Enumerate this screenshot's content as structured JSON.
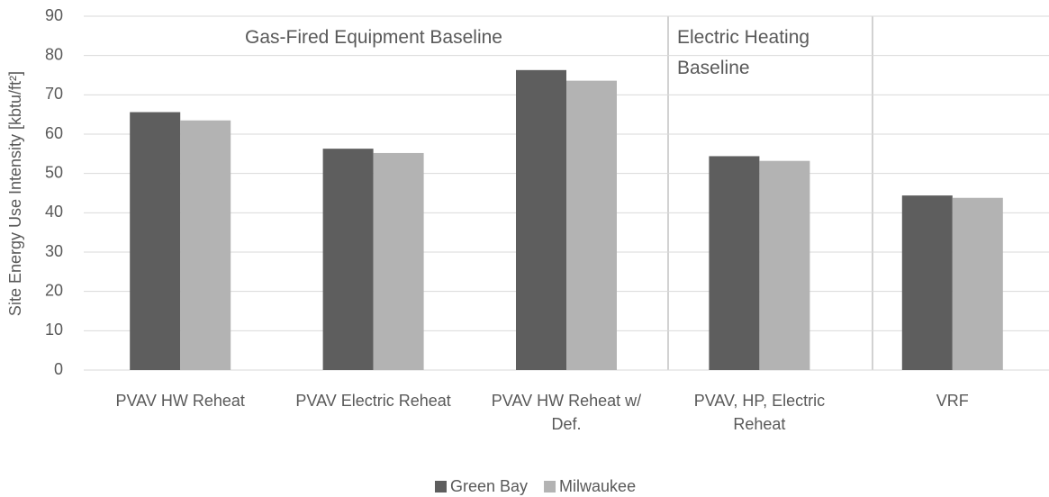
{
  "chart_data": {
    "type": "bar",
    "y_label": "Site Energy Use Intensity [kbtu/ft²]",
    "categories": [
      "PVAV HW Reheat",
      "PVAV Electric Reheat",
      "PVAV HW Reheat w/ Def.",
      "PVAV, HP, Electric Reheat",
      "VRF"
    ],
    "series": [
      {
        "name": "Green Bay",
        "color": "#5e5e5e",
        "values": [
          65.6,
          56.3,
          76.3,
          54.4,
          44.4
        ]
      },
      {
        "name": "Milwaukee",
        "color": "#b3b3b3",
        "values": [
          63.5,
          55.2,
          73.6,
          53.2,
          43.8
        ]
      }
    ],
    "annotations": [
      "Gas-Fired Equipment Baseline",
      "Electric Heating Baseline"
    ],
    "ylim": [
      0,
      90
    ],
    "yticks": [
      0,
      10,
      20,
      30,
      40,
      50,
      60,
      70,
      80,
      90
    ],
    "grid": true,
    "legend": "bottom"
  }
}
